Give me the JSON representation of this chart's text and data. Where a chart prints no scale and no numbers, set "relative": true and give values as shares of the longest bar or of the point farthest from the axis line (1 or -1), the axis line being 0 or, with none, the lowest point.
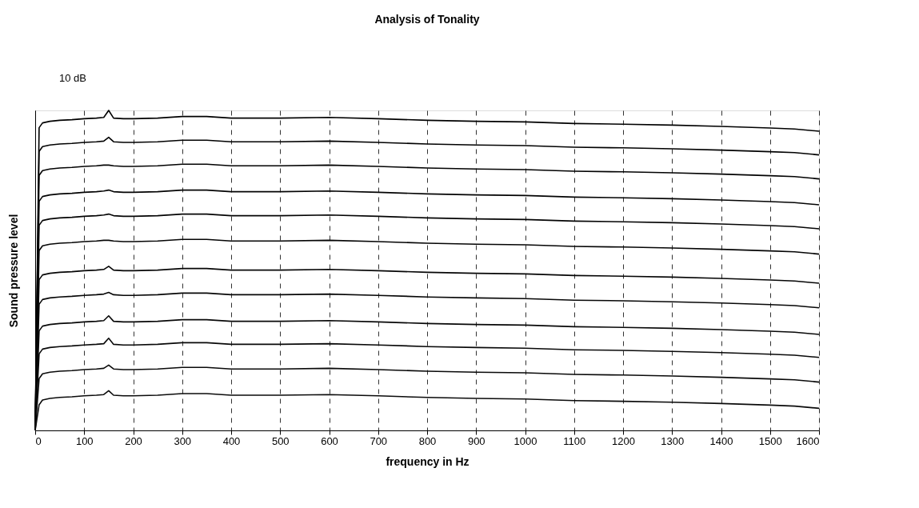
{
  "chart_data": {
    "type": "line",
    "title": "Analysis of Tonality",
    "xlabel": "frequency in Hz",
    "ylabel": "Sound pressure level",
    "relative": true,
    "grid": "x",
    "legend": false,
    "marker": "none",
    "line_style": "solid",
    "annotations": [
      "10 dB"
    ],
    "xlim": [
      0,
      1600
    ],
    "xticks": [
      0,
      100,
      200,
      300,
      400,
      500,
      600,
      700,
      800,
      900,
      1000,
      1100,
      1200,
      1300,
      1400,
      1500,
      1600
    ],
    "x": [
      0,
      8,
      15,
      30,
      50,
      75,
      100,
      125,
      140,
      150,
      160,
      180,
      200,
      250,
      300,
      350,
      400,
      450,
      500,
      600,
      700,
      800,
      900,
      1000,
      1100,
      1200,
      1300,
      1400,
      1500,
      1550,
      1600
    ],
    "series": [
      {
        "color": "#000000",
        "values": [
          0,
          0.946,
          0.961,
          0.966,
          0.969,
          0.971,
          0.974,
          0.976,
          0.978,
          1,
          0.976,
          0.974,
          0.974,
          0.976,
          0.981,
          0.981,
          0.976,
          0.976,
          0.976,
          0.978,
          0.974,
          0.969,
          0.966,
          0.964,
          0.959,
          0.957,
          0.954,
          0.95,
          0.945,
          0.942,
          0.935
        ]
      },
      {
        "color": "#010101",
        "values": [
          0,
          0.872,
          0.887,
          0.892,
          0.895,
          0.897,
          0.9,
          0.902,
          0.904,
          0.916,
          0.902,
          0.9,
          0.9,
          0.902,
          0.907,
          0.907,
          0.902,
          0.902,
          0.902,
          0.904,
          0.9,
          0.895,
          0.892,
          0.89,
          0.885,
          0.883,
          0.88,
          0.876,
          0.871,
          0.868,
          0.861
        ]
      },
      {
        "color": "#020202",
        "values": [
          0,
          0.797,
          0.812,
          0.817,
          0.82,
          0.822,
          0.825,
          0.827,
          0.829,
          0.829,
          0.827,
          0.825,
          0.825,
          0.827,
          0.832,
          0.832,
          0.827,
          0.827,
          0.827,
          0.829,
          0.825,
          0.82,
          0.817,
          0.815,
          0.81,
          0.808,
          0.805,
          0.801,
          0.796,
          0.793,
          0.786
        ]
      },
      {
        "color": "#030303",
        "values": [
          0,
          0.716,
          0.731,
          0.736,
          0.739,
          0.741,
          0.744,
          0.746,
          0.748,
          0.751,
          0.746,
          0.744,
          0.744,
          0.746,
          0.751,
          0.751,
          0.746,
          0.746,
          0.746,
          0.748,
          0.744,
          0.739,
          0.736,
          0.734,
          0.729,
          0.727,
          0.724,
          0.72,
          0.715,
          0.712,
          0.705
        ]
      },
      {
        "color": "#040404",
        "values": [
          0,
          0.641,
          0.656,
          0.661,
          0.664,
          0.666,
          0.669,
          0.671,
          0.673,
          0.676,
          0.671,
          0.669,
          0.669,
          0.671,
          0.676,
          0.676,
          0.671,
          0.671,
          0.671,
          0.673,
          0.669,
          0.664,
          0.661,
          0.659,
          0.654,
          0.652,
          0.649,
          0.645,
          0.64,
          0.637,
          0.63
        ]
      },
      {
        "color": "#050505",
        "values": [
          0,
          0.562,
          0.577,
          0.582,
          0.585,
          0.587,
          0.59,
          0.592,
          0.594,
          0.594,
          0.592,
          0.59,
          0.59,
          0.592,
          0.597,
          0.597,
          0.592,
          0.592,
          0.592,
          0.594,
          0.59,
          0.585,
          0.582,
          0.58,
          0.575,
          0.573,
          0.57,
          0.566,
          0.561,
          0.558,
          0.551
        ]
      },
      {
        "color": "#060606",
        "values": [
          0,
          0.471,
          0.486,
          0.491,
          0.494,
          0.496,
          0.499,
          0.501,
          0.503,
          0.513,
          0.501,
          0.499,
          0.499,
          0.501,
          0.506,
          0.506,
          0.501,
          0.501,
          0.501,
          0.503,
          0.499,
          0.494,
          0.491,
          0.489,
          0.484,
          0.482,
          0.479,
          0.475,
          0.47,
          0.467,
          0.46
        ]
      },
      {
        "color": "#070707",
        "values": [
          0,
          0.394,
          0.409,
          0.414,
          0.417,
          0.419,
          0.422,
          0.424,
          0.426,
          0.431,
          0.424,
          0.422,
          0.422,
          0.424,
          0.429,
          0.429,
          0.424,
          0.424,
          0.424,
          0.426,
          0.422,
          0.417,
          0.414,
          0.412,
          0.407,
          0.405,
          0.402,
          0.398,
          0.393,
          0.39,
          0.383
        ]
      },
      {
        "color": "#080808",
        "values": [
          0,
          0.311,
          0.326,
          0.331,
          0.334,
          0.336,
          0.339,
          0.341,
          0.343,
          0.358,
          0.341,
          0.339,
          0.339,
          0.341,
          0.346,
          0.346,
          0.341,
          0.341,
          0.341,
          0.343,
          0.339,
          0.334,
          0.331,
          0.329,
          0.324,
          0.322,
          0.319,
          0.315,
          0.31,
          0.307,
          0.3
        ]
      },
      {
        "color": "#090909",
        "values": [
          0,
          0.239,
          0.254,
          0.259,
          0.262,
          0.264,
          0.267,
          0.269,
          0.271,
          0.288,
          0.269,
          0.267,
          0.267,
          0.269,
          0.274,
          0.274,
          0.269,
          0.269,
          0.269,
          0.271,
          0.267,
          0.262,
          0.259,
          0.257,
          0.252,
          0.25,
          0.247,
          0.243,
          0.238,
          0.235,
          0.228
        ]
      },
      {
        "color": "#0a0a0a",
        "values": [
          0,
          0.162,
          0.177,
          0.182,
          0.185,
          0.187,
          0.19,
          0.192,
          0.194,
          0.204,
          0.192,
          0.19,
          0.19,
          0.192,
          0.197,
          0.197,
          0.192,
          0.192,
          0.192,
          0.194,
          0.19,
          0.185,
          0.182,
          0.18,
          0.175,
          0.173,
          0.17,
          0.166,
          0.161,
          0.158,
          0.151
        ]
      },
      {
        "color": "#0b0b0b",
        "values": [
          0,
          0.08,
          0.095,
          0.1,
          0.103,
          0.105,
          0.108,
          0.11,
          0.112,
          0.124,
          0.11,
          0.108,
          0.108,
          0.11,
          0.115,
          0.115,
          0.11,
          0.11,
          0.11,
          0.112,
          0.108,
          0.103,
          0.1,
          0.098,
          0.093,
          0.091,
          0.088,
          0.084,
          0.079,
          0.076,
          0.069
        ]
      }
    ]
  }
}
